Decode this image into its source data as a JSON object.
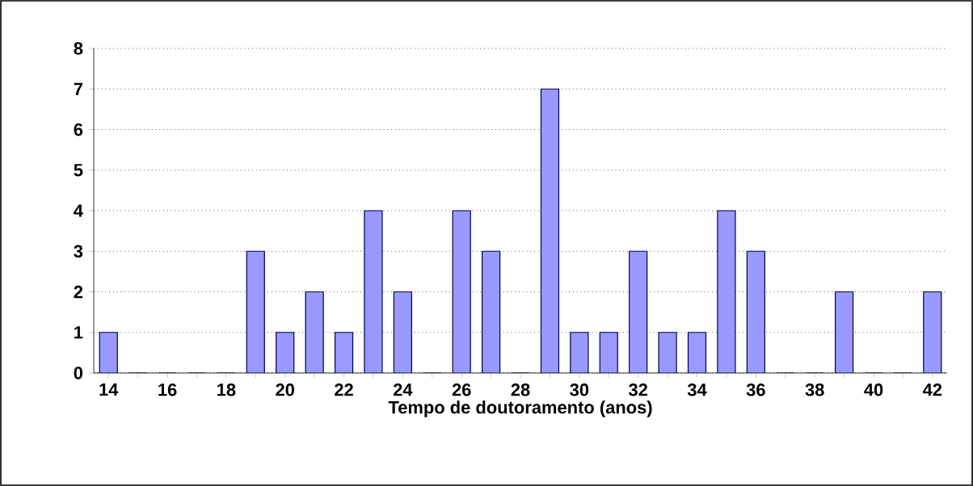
{
  "chart_data": {
    "type": "bar",
    "xlabel": "Tempo de doutoramento (anos)",
    "categories": [
      "14",
      null,
      "16",
      null,
      "18",
      null,
      "20",
      null,
      "22",
      null,
      "24",
      null,
      "26",
      null,
      "28",
      null,
      "30",
      null,
      "32",
      null,
      "34",
      null,
      "36",
      null,
      "38",
      null,
      "40",
      null,
      "42"
    ],
    "values": [
      1,
      0,
      0,
      0,
      0,
      3,
      1,
      2,
      1,
      4,
      2,
      0,
      4,
      3,
      0,
      7,
      1,
      1,
      3,
      1,
      1,
      4,
      3,
      0,
      0,
      2,
      0,
      0,
      2
    ],
    "color": "#9999ff",
    "ylim": [
      0,
      8
    ],
    "yticks": [
      0,
      1,
      2,
      3,
      4,
      5,
      6,
      7,
      8
    ],
    "grid": "y"
  }
}
